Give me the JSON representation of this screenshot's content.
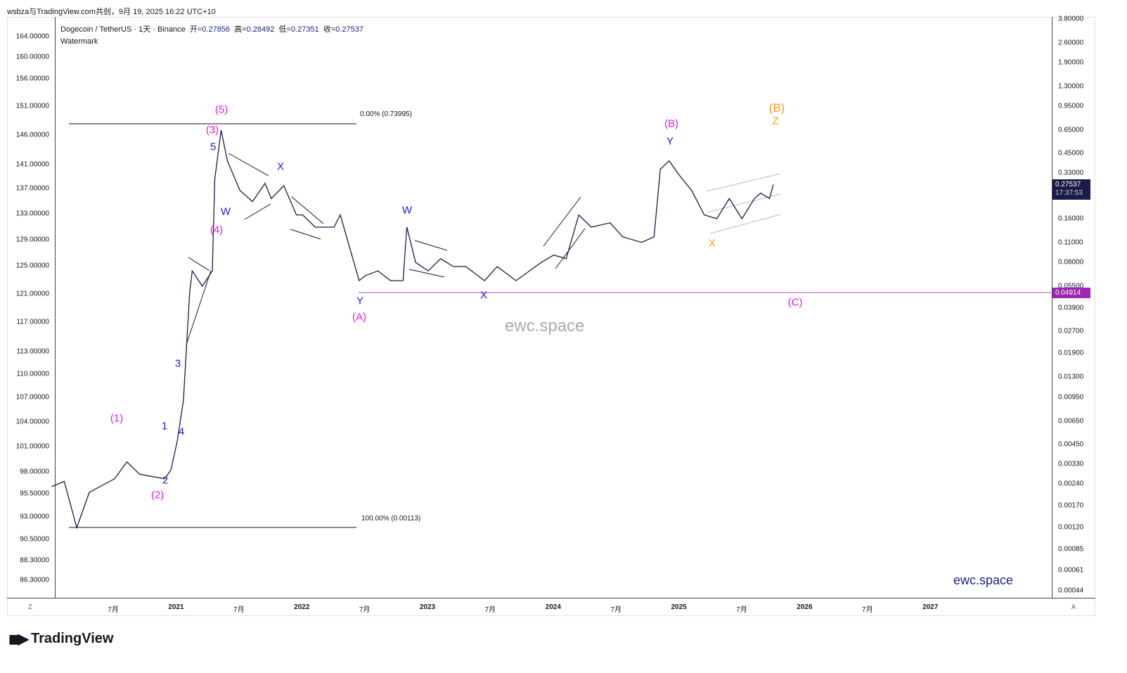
{
  "header": {
    "attribution": "wsbza与TradingView.com共创，9月 19, 2025 16:22 UTC+10"
  },
  "legend": {
    "symbol": "Dogecoin / TetherUS · 1天 · Binance",
    "open_label": "开=",
    "open": "0.27856",
    "high_label": "高=",
    "high": "0.28492",
    "low_label": "低=",
    "low": "0.27351",
    "close_label": "收=",
    "close": "0.27537",
    "watermark_line": "Watermark"
  },
  "left_axis": [
    "164.00000",
    "160.00000",
    "156.00000",
    "151.00000",
    "146.00000",
    "141.00000",
    "137.00000",
    "133.00000",
    "129.00000",
    "125.00000",
    "121.00000",
    "117.00000",
    "113.00000",
    "110.00000",
    "107.00000",
    "104.00000",
    "101.00000",
    "98.00000",
    "95.50000",
    "93.00000",
    "90.50000",
    "88.30000",
    "86.30000"
  ],
  "right_axis": [
    "3.80000",
    "2.60000",
    "1.90000",
    "1.30000",
    "0.95000",
    "0.65000",
    "0.45000",
    "0.33000",
    "0.16000",
    "0.11000",
    "0.08000",
    "0.05500",
    "0.03900",
    "0.02700",
    "0.01900",
    "0.01300",
    "0.00950",
    "0.00650",
    "0.00450",
    "0.00330",
    "0.00240",
    "0.00170",
    "0.00120",
    "0.00085",
    "0.00061",
    "0.00044"
  ],
  "price_tag": {
    "price": "0.27537",
    "countdown": "17:37:53",
    "color": "#1c1a48"
  },
  "level_tag": {
    "price": "0.04914",
    "color": "#9c27b0"
  },
  "x_axis": [
    {
      "t": "7月",
      "y": false
    },
    {
      "t": "2021",
      "y": true
    },
    {
      "t": "7月",
      "y": false
    },
    {
      "t": "2022",
      "y": true
    },
    {
      "t": "7月",
      "y": false
    },
    {
      "t": "2023",
      "y": true
    },
    {
      "t": "7月",
      "y": false
    },
    {
      "t": "2024",
      "y": true
    },
    {
      "t": "7月",
      "y": false
    },
    {
      "t": "2025",
      "y": true
    },
    {
      "t": "7月",
      "y": false
    },
    {
      "t": "2026",
      "y": true
    },
    {
      "t": "7月",
      "y": false
    },
    {
      "t": "2027",
      "y": true
    }
  ],
  "fib": {
    "top": "0.00% (0.73995)",
    "bottom": "100.00% (0.00113)"
  },
  "waves": {
    "w5": "(5)",
    "w3": "(3)",
    "w4": "(4)",
    "w1": "(1)",
    "w2": "(2)",
    "s5": "5",
    "s3": "3",
    "s1": "1",
    "s2": "2",
    "s4": "4",
    "W1": "W",
    "X1": "X",
    "Y1": "Y",
    "A": "(A)",
    "W2": "W",
    "X2": "X",
    "B": "(B)",
    "Y2": "Y",
    "X3": "X",
    "B2": "(B)",
    "Z": "Z",
    "C": "(C)"
  },
  "watermark": "ewc.space",
  "watermark2": "ewc.space",
  "brand": "TradingView",
  "corners": {
    "left": "Z",
    "right": "A"
  },
  "chart_data": {
    "type": "line",
    "title": "Dogecoin / TetherUS · 1天 · Binance",
    "scale": "log",
    "ylim": [
      0.00044,
      3.8
    ],
    "x": [
      2020.0,
      2020.1,
      2020.2,
      2020.3,
      2020.5,
      2020.6,
      2020.7,
      2020.9,
      2020.95,
      2021.0,
      2021.05,
      2021.1,
      2021.12,
      2021.2,
      2021.28,
      2021.3,
      2021.35,
      2021.4,
      2021.5,
      2021.6,
      2021.7,
      2021.75,
      2021.85,
      2021.95,
      2022.0,
      2022.1,
      2022.25,
      2022.3,
      2022.4,
      2022.45,
      2022.5,
      2022.6,
      2022.7,
      2022.8,
      2022.83,
      2022.9,
      2023.0,
      2023.1,
      2023.2,
      2023.3,
      2023.45,
      2023.55,
      2023.7,
      2023.9,
      2024.0,
      2024.1,
      2024.2,
      2024.3,
      2024.45,
      2024.55,
      2024.7,
      2024.8,
      2024.85,
      2024.92,
      2025.0,
      2025.1,
      2025.2,
      2025.3,
      2025.4,
      2025.5,
      2025.6,
      2025.65,
      2025.72,
      2025.75
    ],
    "values": [
      0.0023,
      0.0025,
      0.0012,
      0.0021,
      0.0026,
      0.0034,
      0.0028,
      0.0026,
      0.003,
      0.0047,
      0.009,
      0.05,
      0.07,
      0.055,
      0.07,
      0.3,
      0.65,
      0.4,
      0.25,
      0.21,
      0.28,
      0.22,
      0.27,
      0.17,
      0.17,
      0.14,
      0.14,
      0.17,
      0.085,
      0.06,
      0.065,
      0.07,
      0.06,
      0.06,
      0.14,
      0.08,
      0.07,
      0.085,
      0.075,
      0.075,
      0.06,
      0.075,
      0.06,
      0.08,
      0.09,
      0.085,
      0.17,
      0.14,
      0.15,
      0.12,
      0.11,
      0.12,
      0.35,
      0.4,
      0.32,
      0.25,
      0.17,
      0.16,
      0.22,
      0.16,
      0.22,
      0.24,
      0.22,
      0.275
    ],
    "levels": [
      0.73995,
      0.00113,
      0.04914
    ]
  }
}
